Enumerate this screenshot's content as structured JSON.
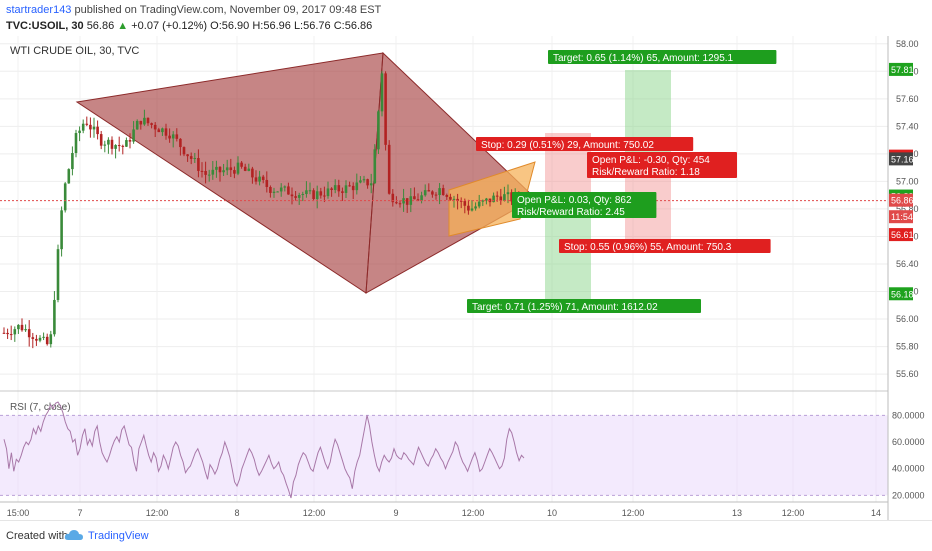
{
  "header": {
    "publisher": "startrader143",
    "published_text": "published on TradingView.com, November 09, 2017 09:48 EST",
    "symbol": "TVC:USOIL, 30",
    "last": "56.86",
    "change": "+0.07 (+0.12%)",
    "open": "O:56.90",
    "high": "H:56.96",
    "low": "L:56.76",
    "close": "C:56.86"
  },
  "footer": {
    "created": "Created with",
    "brand": "TradingView",
    "logo_icon": "tradingview-cloud-icon"
  },
  "chart_data": {
    "type": "candlestick",
    "title": "WTI CRUDE OIL, 30, TVC",
    "y_ticks": [
      "58.00",
      "57.80",
      "57.60",
      "57.40",
      "57.20",
      "57.00",
      "56.80",
      "56.60",
      "56.40",
      "56.20",
      "56.00",
      "55.80",
      "55.60"
    ],
    "ylim": [
      55.55,
      58.02
    ],
    "x_ticks": [
      "15:00",
      "7",
      "12:00",
      "8",
      "12:00",
      "9",
      "12:00",
      "10",
      "12:00",
      "13",
      "12:00",
      "14"
    ],
    "price_labels": [
      {
        "value": 57.81,
        "text": "57.81",
        "color": "#1ea21e"
      },
      {
        "value": 57.18,
        "text": "57.18",
        "color": "#e02020"
      },
      {
        "value": 57.16,
        "text": "57.16",
        "color": "#444444"
      },
      {
        "value": 56.89,
        "text": "56.89",
        "color": "#1ea21e"
      },
      {
        "value": 56.86,
        "text": "56.86",
        "color": "#e04a4a"
      },
      {
        "value": 56.74,
        "text": "11:54",
        "color": "#e04a4a"
      },
      {
        "value": 56.61,
        "text": "56.61",
        "color": "#e02020"
      },
      {
        "value": 56.18,
        "text": "56.18",
        "color": "#1ea21e"
      }
    ],
    "annotations": [
      {
        "text": "Target: 0.65 (1.14%) 65, Amount: 1295.1",
        "color": "#1e9e1e"
      },
      {
        "text": "Stop: 0.29 (0.51%) 29, Amount: 750.02",
        "color": "#e02020"
      },
      {
        "text": "Open P&L: -0.30, Qty: 454",
        "color": "#e02020"
      },
      {
        "text": "Risk/Reward Ratio: 1.18",
        "color": "#e02020"
      },
      {
        "text": "Open P&L: 0.03, Qty: 862",
        "color": "#1e9e1e"
      },
      {
        "text": "Risk/Reward Ratio: 2.45",
        "color": "#1e9e1e"
      },
      {
        "text": "Stop: 0.55 (0.96%) 55, Amount: 750.3",
        "color": "#e02020"
      },
      {
        "text": "Target: 0.71 (1.25%) 71, Amount: 1612.02",
        "color": "#1e9e1e"
      }
    ],
    "rsi": {
      "label": "RSI (7, close)",
      "y_ticks": [
        "80.0000",
        "60.0000",
        "40.0000",
        "20.0000"
      ],
      "ylim": [
        15,
        93
      ],
      "values": [
        62,
        55,
        40,
        52,
        38,
        47,
        45,
        50,
        56,
        60,
        58,
        62,
        70,
        66,
        72,
        68,
        75,
        80,
        83,
        88,
        85,
        89,
        90,
        87,
        82,
        75,
        70,
        68,
        60,
        62,
        50,
        55,
        65,
        70,
        58,
        62,
        57,
        68,
        72,
        60,
        52,
        48,
        45,
        50,
        56,
        61,
        64,
        60,
        69,
        72,
        65,
        58,
        56,
        45,
        38,
        55,
        60,
        65,
        57,
        50,
        45,
        52,
        48,
        38,
        42,
        50,
        46,
        40,
        48,
        56,
        60,
        57,
        50,
        45,
        37,
        40,
        42,
        47,
        52,
        55,
        50,
        45,
        38,
        32,
        43,
        40,
        36,
        40,
        47,
        52,
        60,
        55,
        49,
        40,
        30,
        27,
        32,
        40,
        45,
        50,
        55,
        52,
        47,
        40,
        35,
        38,
        42,
        46,
        50,
        44,
        40,
        42,
        45,
        38,
        35,
        29,
        24,
        18,
        30,
        35,
        43,
        48,
        52,
        50,
        45,
        40,
        38,
        45,
        52,
        56,
        50,
        44,
        40,
        45,
        55,
        62,
        58,
        52,
        46,
        40,
        36,
        33,
        25,
        38,
        45,
        50,
        60,
        70,
        80,
        72,
        60,
        50,
        42,
        38,
        45,
        50,
        47,
        45,
        48,
        55,
        50,
        48,
        47,
        52,
        50,
        47,
        45,
        43,
        50,
        56,
        52,
        48,
        44,
        42,
        47,
        50,
        55,
        52,
        48,
        45,
        40,
        45,
        49,
        53,
        60,
        57,
        50,
        45,
        42,
        38,
        43,
        48,
        52,
        46,
        38,
        40,
        45,
        50,
        55,
        52,
        48,
        44,
        40,
        42,
        48,
        62,
        70,
        67,
        60,
        52,
        46,
        50,
        48
      ]
    }
  }
}
